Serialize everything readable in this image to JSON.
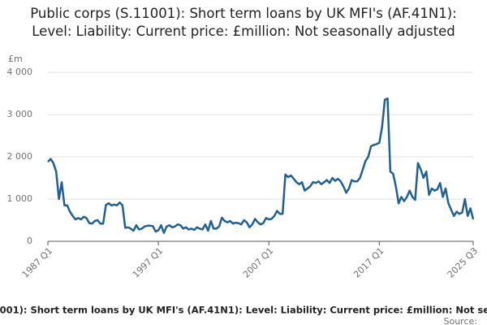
{
  "chart_data": {
    "type": "line",
    "title": "Public corps (S.11001): Short term loans by UK MFI's (AF.41N1): Level: Liability: Current price: £million: Not seasonally adjusted",
    "y_label": "£m",
    "source": "Source:",
    "categories": [
      "1987 Q1",
      null,
      null,
      null,
      null,
      null,
      null,
      null,
      null,
      null,
      null,
      null,
      null,
      null,
      null,
      null,
      null,
      null,
      null,
      null,
      null,
      null,
      null,
      null,
      null,
      null,
      null,
      null,
      null,
      null,
      null,
      null,
      null,
      null,
      null,
      null,
      null,
      null,
      null,
      null,
      "1997 Q1",
      null,
      null,
      null,
      null,
      null,
      null,
      null,
      null,
      null,
      null,
      null,
      null,
      null,
      null,
      null,
      null,
      null,
      null,
      null,
      null,
      null,
      null,
      null,
      null,
      null,
      null,
      null,
      null,
      null,
      null,
      null,
      null,
      null,
      null,
      null,
      null,
      null,
      null,
      null,
      "2007 Q1",
      null,
      null,
      null,
      null,
      null,
      null,
      null,
      null,
      null,
      null,
      null,
      null,
      null,
      null,
      null,
      null,
      null,
      null,
      null,
      null,
      null,
      null,
      null,
      null,
      null,
      null,
      null,
      null,
      null,
      null,
      null,
      null,
      null,
      null,
      null,
      null,
      null,
      null,
      null,
      "2017 Q1",
      null,
      null,
      null,
      null,
      null,
      null,
      null,
      null,
      null,
      null,
      null,
      null,
      null,
      null,
      null,
      null,
      null,
      null,
      null,
      null,
      null,
      null,
      null,
      null,
      null,
      null,
      null,
      null,
      null,
      null,
      null,
      null,
      null,
      "2025 Q3"
    ],
    "series": [
      {
        "name": "Public corps (S.11001): Short term loans by UK MFI's (AF.41N1)",
        "color": "#206095",
        "values": [
          1880,
          1950,
          1850,
          1650,
          1000,
          1400,
          850,
          850,
          700,
          600,
          520,
          550,
          520,
          580,
          550,
          430,
          420,
          480,
          500,
          420,
          420,
          860,
          900,
          850,
          870,
          850,
          920,
          850,
          320,
          330,
          300,
          250,
          380,
          280,
          300,
          350,
          370,
          370,
          360,
          230,
          260,
          380,
          200,
          350,
          380,
          330,
          350,
          400,
          380,
          300,
          330,
          280,
          300,
          270,
          330,
          300,
          280,
          400,
          250,
          480,
          300,
          300,
          350,
          560,
          480,
          450,
          480,
          420,
          440,
          430,
          400,
          500,
          450,
          330,
          400,
          530,
          450,
          400,
          430,
          550,
          520,
          530,
          600,
          720,
          650,
          650,
          1580,
          1520,
          1560,
          1480,
          1400,
          1350,
          1400,
          1200,
          1250,
          1300,
          1400,
          1380,
          1420,
          1350,
          1400,
          1450,
          1380,
          1500,
          1430,
          1480,
          1420,
          1300,
          1150,
          1250,
          1450,
          1420,
          1420,
          1500,
          1700,
          1900,
          2000,
          2250,
          2280,
          2300,
          2330,
          2700,
          3350,
          3380,
          1650,
          1600,
          1300,
          900,
          1050,
          950,
          1050,
          1200,
          1050,
          980,
          1850,
          1700,
          1500,
          1650,
          1100,
          1250,
          1200,
          1230,
          1380,
          1050,
          1250,
          900,
          750,
          600,
          700,
          650,
          680,
          1000,
          600,
          780,
          520
        ]
      }
    ],
    "ylim": [
      0,
      4000
    ],
    "yticks": [
      0,
      {
        "value": 1000,
        "label": "1 000"
      },
      {
        "value": 2000,
        "label": "2 000"
      },
      {
        "value": 3000,
        "label": "3 000"
      },
      {
        "value": 4000,
        "label": "4 000"
      }
    ],
    "grid": true
  }
}
